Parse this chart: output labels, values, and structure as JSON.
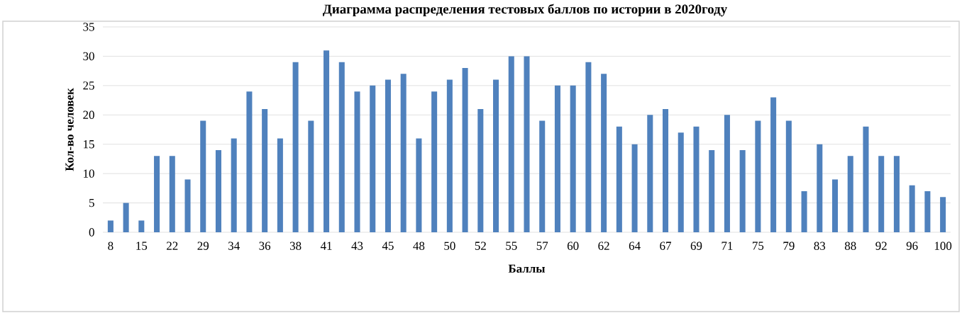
{
  "chart_data": {
    "type": "bar",
    "title": "Диаграмма распределения тестовых баллов по истории в 2020году",
    "xlabel": "Баллы",
    "ylabel": "Кол-во человек",
    "categories": [
      "8",
      null,
      "15",
      null,
      "22",
      null,
      "29",
      null,
      "34",
      null,
      "36",
      null,
      "38",
      null,
      "41",
      null,
      "43",
      null,
      "45",
      null,
      "48",
      null,
      "50",
      null,
      "52",
      null,
      "55",
      null,
      "57",
      null,
      "60",
      null,
      "62",
      null,
      "64",
      null,
      "67",
      null,
      "69",
      null,
      "71",
      null,
      "75",
      null,
      "79",
      null,
      "83",
      null,
      "88",
      null,
      "92",
      null,
      "96",
      null,
      "100"
    ],
    "values": [
      2,
      5,
      2,
      13,
      13,
      9,
      19,
      14,
      16,
      24,
      21,
      16,
      29,
      19,
      31,
      29,
      24,
      25,
      26,
      27,
      16,
      24,
      26,
      28,
      21,
      26,
      30,
      30,
      19,
      25,
      25,
      29,
      27,
      18,
      15,
      20,
      21,
      17,
      18,
      14,
      20,
      14,
      19,
      23,
      19,
      7,
      15,
      9,
      13,
      18,
      13,
      13,
      8,
      7,
      6
    ],
    "color": "#4f81bd",
    "ylim": [
      0,
      35
    ],
    "yticks": [
      0,
      5,
      10,
      15,
      20,
      25,
      30,
      35
    ],
    "grid": "y"
  }
}
